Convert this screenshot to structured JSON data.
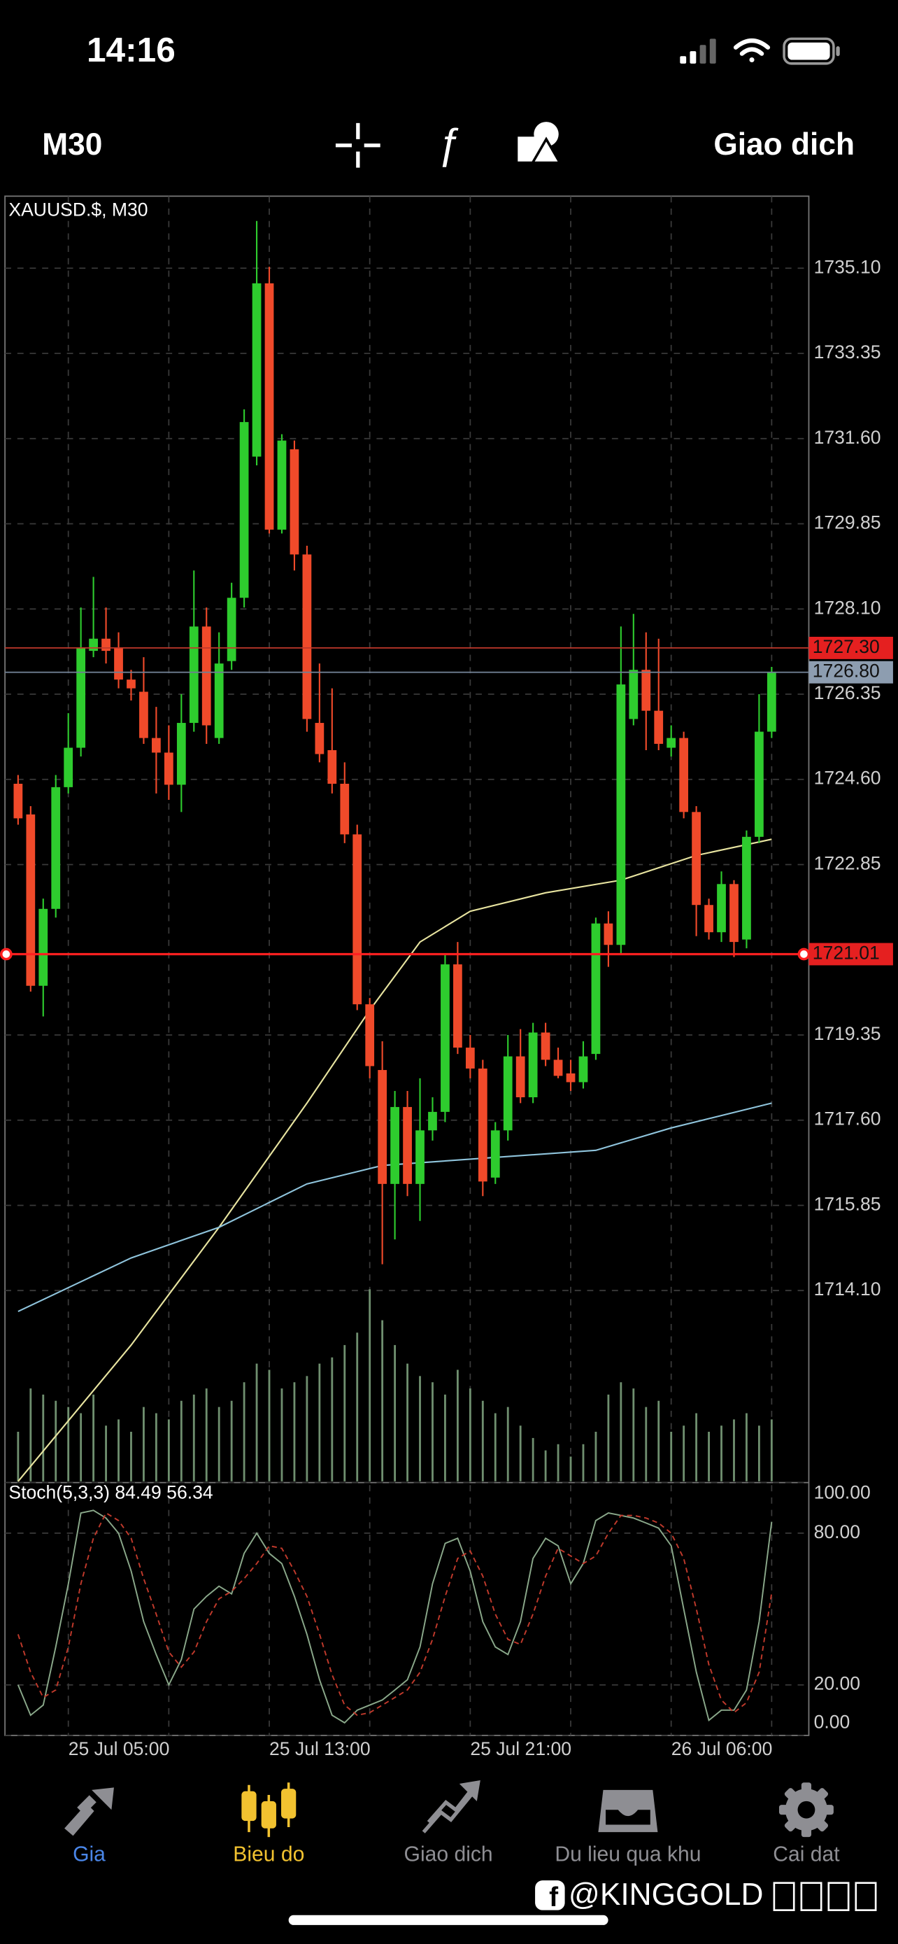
{
  "status_bar": {
    "time": "14:16"
  },
  "toolbar": {
    "timeframe": "M30",
    "trade": "Giao dich"
  },
  "chart_data": [
    {
      "type": "candlestick",
      "title": "XAUUSD.$, M30",
      "categories": [
        null,
        null,
        null,
        null,
        "25 Jul 05:00",
        null,
        null,
        null,
        null,
        null,
        null,
        null,
        null,
        null,
        null,
        null,
        null,
        null,
        null,
        null,
        "25 Jul 13:00",
        null,
        null,
        null,
        null,
        null,
        null,
        null,
        null,
        null,
        null,
        null,
        null,
        null,
        null,
        null,
        "25 Jul 21:00",
        null,
        null,
        null,
        null,
        null,
        null,
        null,
        null,
        null,
        null,
        null,
        null,
        null,
        null,
        null,
        "26 Jul 06:00",
        null,
        null,
        null,
        null,
        null,
        null,
        null,
        null
      ],
      "open": [
        1724.51,
        1723.88,
        1720.36,
        1721.94,
        1724.44,
        1725.25,
        1727.24,
        1727.49,
        1727.31,
        1726.65,
        1726.4,
        1725.45,
        1725.15,
        1724.49,
        1725.76,
        1727.74,
        1725.45,
        1727.03,
        1728.33,
        1731.23,
        1734.79,
        1729.73,
        1731.38,
        1729.22,
        1725.76,
        1725.2,
        1724.51,
        1723.47,
        1719.98,
        1718.63,
        1716.29,
        1717.87,
        1716.29,
        1717.39,
        1717.77,
        1720.8,
        1719.09,
        1718.66,
        1716.42,
        1717.39,
        1718.91,
        1718.07,
        1719.4,
        1718.84,
        1718.56,
        1718.38,
        1718.96,
        1721.64,
        1721.2,
        1725.84,
        1726.85,
        1726.01,
        1725.25,
        1725.45,
        1723.93,
        1722.02,
        1721.46,
        1722.45,
        1721.31,
        1723.42,
        1725.58
      ],
      "high": [
        1724.69,
        1724.05,
        1722.15,
        1724.69,
        1725.96,
        1728.13,
        1728.76,
        1728.13,
        1727.62,
        1726.85,
        1727.11,
        1726.09,
        1725.71,
        1726.35,
        1728.89,
        1728.13,
        1727.62,
        1728.64,
        1732.2,
        1736.07,
        1735.13,
        1731.69,
        1731.56,
        1729.4,
        1726.98,
        1726.47,
        1724.95,
        1723.67,
        1720.11,
        1719.22,
        1718.2,
        1718.2,
        1718.46,
        1718.07,
        1721.0,
        1721.26,
        1719.35,
        1718.84,
        1717.56,
        1719.35,
        1719.47,
        1719.6,
        1719.6,
        1719.09,
        1718.84,
        1719.22,
        1721.76,
        1721.89,
        1727.74,
        1728.0,
        1727.62,
        1727.49,
        1725.71,
        1725.58,
        1724.05,
        1722.15,
        1722.71,
        1722.53,
        1723.55,
        1726.35,
        1726.91
      ],
      "low": [
        1723.67,
        1720.24,
        1719.73,
        1721.76,
        1724.31,
        1725.07,
        1727.11,
        1726.98,
        1726.47,
        1726.22,
        1725.33,
        1724.31,
        1724.18,
        1723.93,
        1725.58,
        1725.33,
        1725.33,
        1726.85,
        1728.13,
        1731.05,
        1729.65,
        1729.65,
        1728.89,
        1725.58,
        1724.95,
        1724.31,
        1723.29,
        1719.86,
        1718.46,
        1714.64,
        1715.15,
        1716.04,
        1715.53,
        1717.18,
        1717.56,
        1718.96,
        1718.46,
        1716.04,
        1716.29,
        1717.18,
        1717.95,
        1717.95,
        1718.71,
        1718.46,
        1718.2,
        1718.25,
        1718.84,
        1720.75,
        1721.0,
        1725.71,
        1725.2,
        1725.2,
        1725.07,
        1723.8,
        1721.38,
        1721.31,
        1721.26,
        1720.95,
        1721.13,
        1723.29,
        1725.45
      ],
      "close": [
        1723.8,
        1720.36,
        1721.94,
        1724.44,
        1725.25,
        1727.31,
        1727.49,
        1727.24,
        1726.65,
        1726.47,
        1725.45,
        1725.15,
        1724.49,
        1725.76,
        1727.74,
        1725.71,
        1726.98,
        1728.33,
        1731.94,
        1734.79,
        1729.73,
        1731.56,
        1729.22,
        1725.84,
        1725.12,
        1724.51,
        1723.47,
        1719.98,
        1718.71,
        1716.29,
        1717.87,
        1716.29,
        1717.39,
        1717.77,
        1720.8,
        1719.09,
        1718.66,
        1716.34,
        1717.39,
        1718.91,
        1718.07,
        1719.4,
        1718.84,
        1718.51,
        1718.38,
        1718.91,
        1721.64,
        1721.2,
        1726.55,
        1726.85,
        1726.01,
        1725.33,
        1725.45,
        1723.93,
        1722.02,
        1721.46,
        1722.45,
        1721.26,
        1723.42,
        1725.58,
        1726.8
      ],
      "volume": [
        40,
        75,
        70,
        65,
        60,
        55,
        70,
        45,
        50,
        40,
        60,
        55,
        50,
        65,
        70,
        75,
        60,
        65,
        80,
        95,
        90,
        75,
        80,
        85,
        95,
        100,
        110,
        120,
        155,
        130,
        110,
        95,
        85,
        80,
        70,
        90,
        75,
        65,
        55,
        60,
        45,
        35,
        25,
        30,
        20,
        30,
        40,
        70,
        80,
        75,
        60,
        65,
        40,
        45,
        55,
        40,
        45,
        50,
        55,
        45,
        50
      ],
      "volume_color": "#6f8f6f",
      "up_color": "#2ecc2e",
      "down_color": "#f04a2a",
      "overlays": [
        {
          "color": "#e8e4a0",
          "x": [
            0,
            9,
            16,
            23,
            28,
            32,
            36,
            42,
            48,
            54,
            60
          ],
          "values": [
            1710.18,
            1712.98,
            1715.4,
            1717.95,
            1719.86,
            1721.26,
            1721.89,
            1722.27,
            1722.53,
            1723.04,
            1723.37
          ]
        },
        {
          "color": "#8fc4dc",
          "x": [
            0,
            9,
            16,
            23,
            29,
            36,
            46,
            52,
            60
          ],
          "values": [
            1713.67,
            1714.77,
            1715.4,
            1716.29,
            1716.67,
            1716.8,
            1716.98,
            1717.44,
            1717.95
          ]
        }
      ],
      "price_lines": [
        {
          "value": 1727.3,
          "label": "1727.30",
          "color": "#c0392b",
          "label_color": "#e52020"
        },
        {
          "value": 1726.8,
          "label": "1726.80",
          "color": "#6f7f92",
          "label_color": "#8d9db0"
        },
        {
          "value": 1721.01,
          "label": "1721.01",
          "color": "#ff2020",
          "label_color": "#e52020"
        }
      ],
      "ylim": [
        1710.18,
        1736.58
      ],
      "yticks": [
        {
          "value": 1735.1,
          "label": "1735.10"
        },
        {
          "value": 1733.35,
          "label": "1733.35"
        },
        {
          "value": 1731.6,
          "label": "1731.60"
        },
        {
          "value": 1729.85,
          "label": "1729.85"
        },
        {
          "value": 1728.1,
          "label": "1728.10"
        },
        {
          "value": 1726.35,
          "label": "1726.35"
        },
        {
          "value": 1724.6,
          "label": "1724.60"
        },
        {
          "value": 1722.85,
          "label": "1722.85"
        },
        {
          "value": 1719.35,
          "label": "1719.35"
        },
        {
          "value": 1717.6,
          "label": "1717.60"
        },
        {
          "value": 1715.85,
          "label": "1715.85"
        },
        {
          "value": 1714.1,
          "label": "1714.10"
        }
      ],
      "grid": true
    },
    {
      "type": "line",
      "title": "Stoch(5,3,3) 84.49 56.34",
      "series": [
        {
          "color": "#8aa88a",
          "dash": false,
          "values": [
            20,
            8,
            12,
            35,
            60,
            88,
            89,
            86,
            80,
            65,
            45,
            32,
            20,
            30,
            50,
            55,
            59,
            56,
            72,
            80,
            72,
            68,
            55,
            40,
            22,
            8,
            5,
            10,
            12,
            14,
            18,
            22,
            35,
            60,
            76,
            78,
            65,
            45,
            35,
            32,
            45,
            70,
            78,
            75,
            60,
            68,
            85,
            88,
            87,
            86,
            84,
            82,
            75,
            50,
            25,
            6,
            10,
            10,
            18,
            45,
            84.49
          ]
        },
        {
          "color": "#c0392b",
          "dash": true,
          "values": [
            40,
            25,
            15,
            18,
            35,
            60,
            78,
            88,
            85,
            78,
            62,
            48,
            33,
            27,
            33,
            45,
            54,
            57,
            62,
            68,
            75,
            74,
            65,
            55,
            40,
            24,
            12,
            8,
            9,
            12,
            15,
            18,
            25,
            38,
            55,
            70,
            73,
            63,
            48,
            38,
            36,
            48,
            63,
            74,
            71,
            68,
            71,
            80,
            87,
            87,
            86,
            84,
            80,
            70,
            50,
            28,
            14,
            9,
            13,
            25,
            56.34
          ]
        }
      ],
      "ylim": [
        0,
        100
      ],
      "yticks": [
        {
          "value": 100,
          "label": "100.00"
        },
        {
          "value": 80,
          "label": "80.00"
        },
        {
          "value": 20,
          "label": "20.00"
        },
        {
          "value": 0,
          "label": "0.00"
        }
      ],
      "grid": true
    }
  ],
  "nav": [
    {
      "label": "Gia",
      "color": "#4a86e8"
    },
    {
      "label": "Bieu do",
      "color": "#f2c230"
    },
    {
      "label": "Giao dich",
      "color": "#8e8e93"
    },
    {
      "label": "Du lieu qua khu",
      "color": "#8e8e93"
    },
    {
      "label": "Cai dat",
      "color": "#8e8e93"
    }
  ],
  "watermark": "@KINGGOLD"
}
